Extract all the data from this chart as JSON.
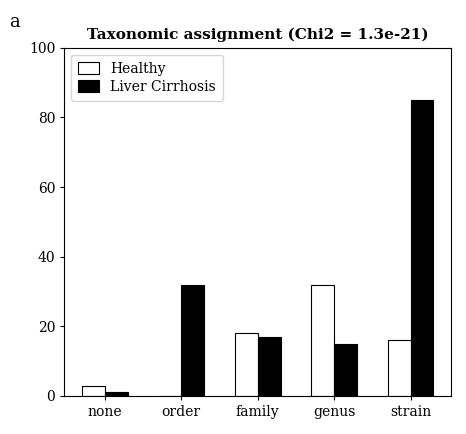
{
  "title": "Taxonomic assignment (Chi2 = 1.3e-21)",
  "panel_label": "a",
  "categories": [
    "none",
    "order",
    "family",
    "genus",
    "strain"
  ],
  "healthy": [
    3,
    0,
    18,
    32,
    16
  ],
  "liver_cirrhosis": [
    1,
    32,
    17,
    15,
    85
  ],
  "ylim": [
    0,
    100
  ],
  "yticks": [
    0,
    20,
    40,
    60,
    80,
    100
  ],
  "healthy_color": "#ffffff",
  "lc_color": "#000000",
  "bar_width": 0.3,
  "title_fontsize": 11,
  "tick_fontsize": 10,
  "legend_fontsize": 10,
  "background_color": "#ffffff"
}
